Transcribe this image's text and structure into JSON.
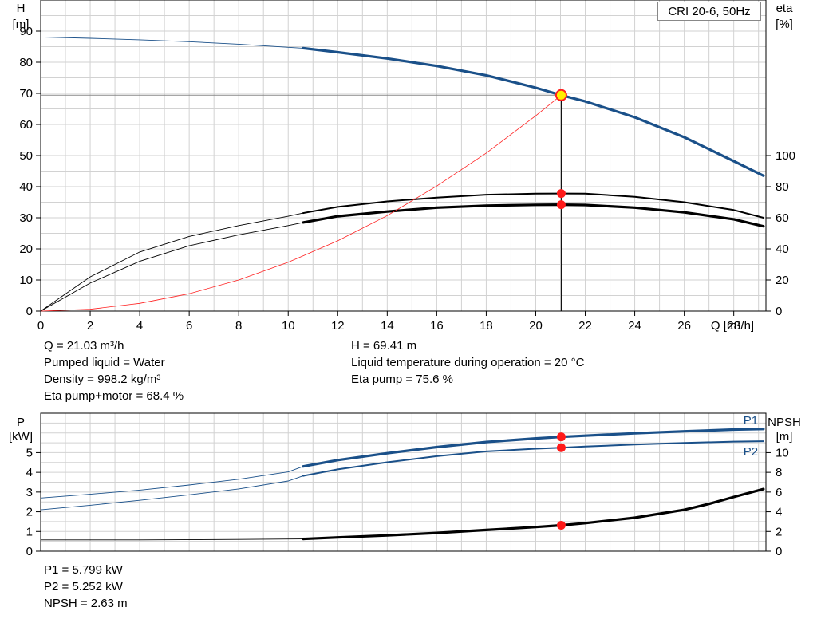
{
  "legend_title": "CRI 20-6, 50Hz",
  "chart_data": [
    {
      "type": "line",
      "name": "head-efficiency",
      "y_label_left": [
        "H",
        "[m]"
      ],
      "y_label_right": [
        "eta",
        "[%]"
      ],
      "x_label": "Q [m³/h]",
      "x_ticks": [
        0,
        2,
        4,
        6,
        8,
        10,
        12,
        14,
        16,
        18,
        20,
        22,
        24,
        26,
        28
      ],
      "xlim": [
        0,
        29.3
      ],
      "ylim_left": [
        0,
        100
      ],
      "ylim_right": [
        0,
        200
      ],
      "y_ticks_left": [
        0,
        10,
        20,
        30,
        40,
        50,
        60,
        70,
        80,
        90
      ],
      "y_ticks_right": [
        0,
        20,
        40,
        60,
        80,
        100
      ],
      "operating_range_start": 10.6,
      "series": [
        {
          "key": "head",
          "axis": "left",
          "color": "#1a5089",
          "x": [
            0,
            2,
            4,
            6,
            8,
            10,
            10.6,
            12,
            14,
            16,
            18,
            20,
            21.03,
            22,
            24,
            26,
            28,
            29.2
          ],
          "y": [
            88.1,
            87.7,
            87.2,
            86.6,
            85.8,
            84.8,
            84.5,
            83.2,
            81.2,
            78.8,
            75.8,
            71.8,
            69.41,
            67.4,
            62.3,
            55.9,
            48.2,
            43.5
          ]
        },
        {
          "key": "eta-pump",
          "axis": "right",
          "color": "#000000",
          "heavy": false,
          "x": [
            0,
            2,
            4,
            6,
            8,
            10,
            10.6,
            12,
            14,
            16,
            18,
            20,
            21.03,
            22,
            24,
            26,
            28,
            29.2
          ],
          "y": [
            0,
            22,
            38,
            48,
            55,
            61,
            63,
            67,
            70.5,
            73,
            74.8,
            75.5,
            75.6,
            75.5,
            73.5,
            70,
            65,
            60
          ]
        },
        {
          "key": "eta-pump-motor",
          "axis": "right",
          "color": "#000000",
          "heavy": true,
          "x": [
            0,
            2,
            4,
            6,
            8,
            10,
            10.6,
            12,
            14,
            16,
            18,
            20,
            21.03,
            22,
            24,
            26,
            28,
            29.2
          ],
          "y": [
            0,
            18,
            32,
            42,
            49,
            55,
            57,
            61,
            64,
            66.5,
            67.8,
            68.3,
            68.4,
            68.2,
            66.5,
            63.5,
            59,
            54.5
          ]
        },
        {
          "key": "system-curve",
          "axis": "left",
          "color": "#ff2020",
          "thin": true,
          "x": [
            0,
            2,
            4,
            6,
            8,
            10,
            12,
            14,
            16,
            18,
            20,
            21.03
          ],
          "y": [
            0,
            0.6,
            2.5,
            5.6,
            10,
            15.7,
            22.6,
            30.7,
            40.2,
            50.8,
            62.8,
            69.41
          ]
        }
      ],
      "operating_point": {
        "x": 21.03,
        "head": 69.41,
        "eta_pump": 75.6,
        "eta_pump_motor": 68.4
      }
    },
    {
      "type": "line",
      "name": "power-npsh",
      "y_label_left": [
        "P",
        "[kW]"
      ],
      "y_label_right": [
        "NPSH",
        "[m]"
      ],
      "xlim": [
        0,
        29.3
      ],
      "ylim_left": [
        0,
        7
      ],
      "ylim_right": [
        0,
        14
      ],
      "y_ticks_left": [
        0,
        1,
        2,
        3,
        4,
        5
      ],
      "y_ticks_right": [
        0,
        2,
        4,
        6,
        8,
        10
      ],
      "operating_range_start": 10.6,
      "series": [
        {
          "key": "P1",
          "label": "P1",
          "axis": "left",
          "color": "#1a5089",
          "heavy": true,
          "x": [
            0,
            2,
            4,
            6,
            8,
            10,
            10.6,
            12,
            14,
            16,
            18,
            20,
            21.03,
            22,
            24,
            26,
            28,
            29.2
          ],
          "y": [
            2.7,
            2.89,
            3.1,
            3.36,
            3.65,
            4.02,
            4.3,
            4.62,
            4.97,
            5.28,
            5.54,
            5.72,
            5.799,
            5.86,
            5.98,
            6.08,
            6.17,
            6.2
          ]
        },
        {
          "key": "P2",
          "label": "P2",
          "axis": "left",
          "color": "#1a5089",
          "heavy": false,
          "x": [
            0,
            2,
            4,
            6,
            8,
            10,
            10.6,
            12,
            14,
            16,
            18,
            20,
            21.03,
            22,
            24,
            26,
            28,
            29.2
          ],
          "y": [
            2.1,
            2.33,
            2.58,
            2.86,
            3.16,
            3.56,
            3.82,
            4.15,
            4.51,
            4.82,
            5.06,
            5.2,
            5.252,
            5.31,
            5.41,
            5.49,
            5.56,
            5.58
          ]
        },
        {
          "key": "NPSH",
          "axis": "right",
          "color": "#000000",
          "heavy": true,
          "x": [
            0,
            4,
            8,
            10.6,
            12,
            14,
            16,
            18,
            20,
            21.03,
            22,
            24,
            26,
            27,
            28,
            29.2
          ],
          "y": [
            1.15,
            1.15,
            1.2,
            1.25,
            1.4,
            1.6,
            1.85,
            2.15,
            2.45,
            2.63,
            2.85,
            3.4,
            4.2,
            4.8,
            5.5,
            6.3
          ]
        }
      ],
      "operating_point": {
        "x": 21.03,
        "P1": 5.799,
        "P2": 5.252,
        "NPSH": 2.63
      }
    }
  ],
  "info_top_left": [
    "Q = 21.03 m³/h",
    "Pumped liquid = Water",
    "Density = 998.2 kg/m³",
    "Eta pump+motor = 68.4 %"
  ],
  "info_top_right": [
    "H = 69.41 m",
    "Liquid temperature during operation = 20 °C",
    "Eta pump = 75.6 %"
  ],
  "info_bottom": [
    "P1 = 5.799 kW",
    "P2 = 5.252 kW",
    "NPSH = 2.63 m"
  ]
}
